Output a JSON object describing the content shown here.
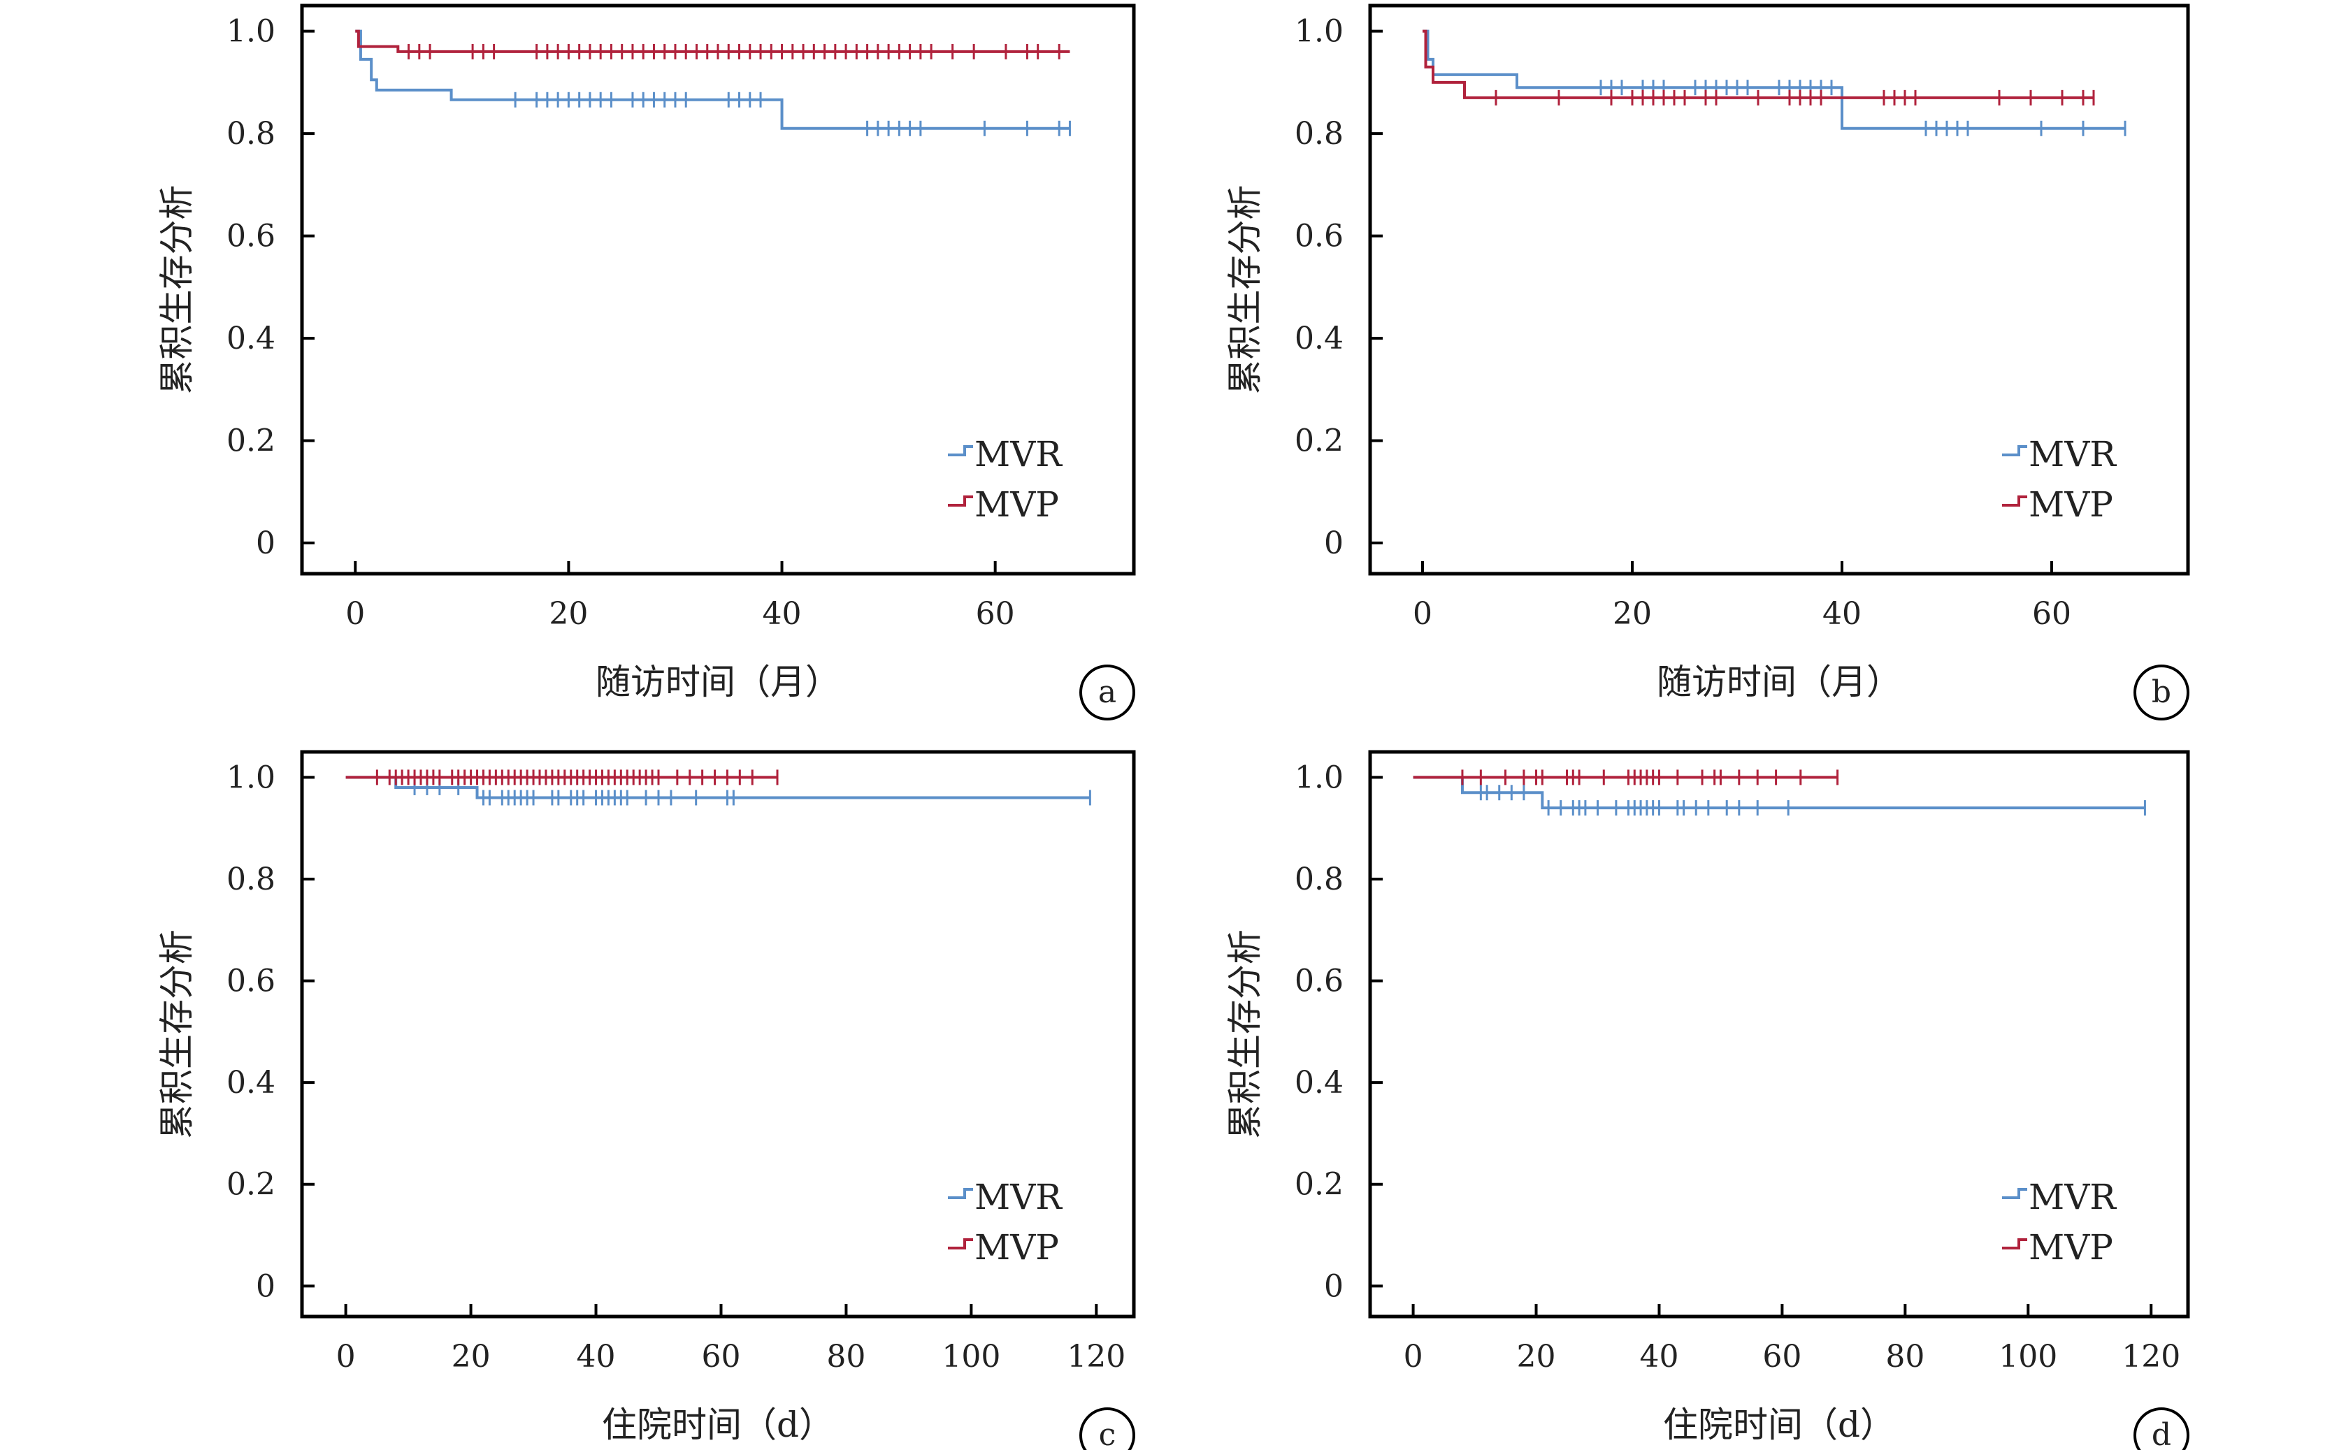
{
  "colors": {
    "MVR": "#5b8fc9",
    "MVP": "#b0223c"
  },
  "chart_data": [
    {
      "type": "line",
      "subtype": "kaplan-meier",
      "panel_label": "a",
      "xlabel": "随访时间（月）",
      "ylabel": "累积生存分析",
      "xlim": [
        -5,
        73
      ],
      "ylim": [
        -0.06,
        1.05
      ],
      "xticks": [
        0,
        20,
        40,
        60
      ],
      "yticks": [
        0,
        0.2,
        0.4,
        0.6,
        0.8,
        1.0
      ],
      "ytick_labels": [
        "0",
        "0.2",
        "0.4",
        "0.6",
        "0.8",
        "1.0"
      ],
      "legend": "bottom-right",
      "series": [
        {
          "name": "MVR",
          "steps": [
            [
              0,
              1.0
            ],
            [
              0.5,
              0.945
            ],
            [
              1.5,
              0.905
            ],
            [
              2,
              0.885
            ],
            [
              9,
              0.866
            ],
            [
              40,
              0.81
            ],
            [
              67,
              0.81
            ]
          ],
          "censored": [
            15,
            17,
            18,
            19,
            20,
            21,
            22,
            23,
            24,
            26,
            27,
            28,
            29,
            30,
            31,
            35,
            36,
            37,
            38,
            48,
            49,
            50,
            51,
            52,
            53,
            59,
            63,
            66,
            67
          ]
        },
        {
          "name": "MVP",
          "steps": [
            [
              0,
              1.0
            ],
            [
              0.3,
              0.97
            ],
            [
              4,
              0.96
            ],
            [
              67,
              0.96
            ]
          ],
          "censored": [
            5,
            6,
            7,
            11,
            12,
            13,
            17,
            18,
            19,
            20,
            21,
            22,
            23,
            24,
            25,
            26,
            27,
            28,
            29,
            30,
            31,
            32,
            33,
            34,
            35,
            36,
            37,
            38,
            39,
            40,
            41,
            42,
            43,
            44,
            45,
            46,
            47,
            48,
            49,
            50,
            51,
            52,
            53,
            54,
            56,
            58,
            61,
            63,
            64,
            66
          ]
        }
      ]
    },
    {
      "type": "line",
      "subtype": "kaplan-meier",
      "panel_label": "b",
      "xlabel": "随访时间（月）",
      "ylabel": "累积生存分析",
      "xlim": [
        -5,
        73
      ],
      "ylim": [
        -0.06,
        1.05
      ],
      "xticks": [
        0,
        20,
        40,
        60
      ],
      "yticks": [
        0,
        0.2,
        0.4,
        0.6,
        0.8,
        1.0
      ],
      "ytick_labels": [
        "0",
        "0.2",
        "0.4",
        "0.6",
        "0.8",
        "1.0"
      ],
      "legend": "bottom-right",
      "series": [
        {
          "name": "MVR",
          "steps": [
            [
              0,
              1.0
            ],
            [
              0.5,
              0.945
            ],
            [
              1,
              0.915
            ],
            [
              9,
              0.89
            ],
            [
              40,
              0.81
            ],
            [
              67,
              0.81
            ]
          ],
          "censored": [
            17,
            18,
            19,
            21,
            22,
            23,
            26,
            27,
            28,
            29,
            30,
            31,
            34,
            35,
            36,
            37,
            38,
            39,
            48,
            49,
            50,
            51,
            52,
            59,
            63,
            67
          ]
        },
        {
          "name": "MVP",
          "steps": [
            [
              0,
              1.0
            ],
            [
              0.3,
              0.93
            ],
            [
              1,
              0.9
            ],
            [
              4,
              0.87
            ],
            [
              64,
              0.87
            ]
          ],
          "censored": [
            7,
            13,
            18,
            20,
            21,
            22,
            23,
            24,
            25,
            27,
            28,
            32,
            35,
            36,
            37,
            38,
            44,
            45,
            46,
            47,
            55,
            58,
            61,
            63,
            64
          ]
        }
      ]
    },
    {
      "type": "line",
      "subtype": "kaplan-meier",
      "panel_label": "c",
      "xlabel": "住院时间（d）",
      "ylabel": "累积生存分析",
      "xlim": [
        -7,
        126
      ],
      "ylim": [
        -0.06,
        1.05
      ],
      "xticks": [
        0,
        20,
        40,
        60,
        80,
        100,
        120
      ],
      "yticks": [
        0,
        0.2,
        0.4,
        0.6,
        0.8,
        1.0
      ],
      "ytick_labels": [
        "0",
        "0.2",
        "0.4",
        "0.6",
        "0.8",
        "1.0"
      ],
      "legend": "bottom-right",
      "series": [
        {
          "name": "MVR",
          "steps": [
            [
              0,
              1.0
            ],
            [
              8,
              0.98
            ],
            [
              20,
              0.98
            ],
            [
              21,
              0.96
            ],
            [
              119,
              0.96
            ]
          ],
          "censored": [
            11,
            13,
            15,
            18,
            22,
            23,
            25,
            26,
            27,
            28,
            29,
            30,
            33,
            34,
            36,
            37,
            38,
            40,
            41,
            42,
            43,
            44,
            45,
            48,
            50,
            52,
            56,
            61,
            62,
            119
          ]
        },
        {
          "name": "MVP",
          "steps": [
            [
              0,
              1.0
            ],
            [
              69,
              1.0
            ]
          ],
          "censored": [
            5,
            7,
            8,
            9,
            10,
            11,
            12,
            13,
            14,
            15,
            17,
            18,
            19,
            20,
            21,
            22,
            23,
            24,
            25,
            26,
            27,
            28,
            29,
            30,
            31,
            32,
            33,
            34,
            35,
            36,
            37,
            38,
            39,
            40,
            41,
            42,
            43,
            44,
            45,
            46,
            47,
            48,
            49,
            50,
            53,
            55,
            57,
            59,
            61,
            63,
            65,
            69
          ]
        }
      ]
    },
    {
      "type": "line",
      "subtype": "kaplan-meier",
      "panel_label": "d",
      "xlabel": "住院时间（d）",
      "ylabel": "累积生存分析",
      "xlim": [
        -7,
        126
      ],
      "ylim": [
        -0.06,
        1.05
      ],
      "xticks": [
        0,
        20,
        40,
        60,
        80,
        100,
        120
      ],
      "yticks": [
        0,
        0.2,
        0.4,
        0.6,
        0.8,
        1.0
      ],
      "ytick_labels": [
        "0",
        "0.2",
        "0.4",
        "0.6",
        "0.8",
        "1.0"
      ],
      "legend": "bottom-right",
      "series": [
        {
          "name": "MVR",
          "steps": [
            [
              0,
              1.0
            ],
            [
              8,
              0.97
            ],
            [
              20,
              0.97
            ],
            [
              21,
              0.94
            ],
            [
              119,
              0.94
            ]
          ],
          "censored": [
            11,
            12,
            14,
            16,
            18,
            22,
            24,
            26,
            27,
            28,
            30,
            33,
            35,
            36,
            37,
            38,
            39,
            40,
            43,
            44,
            46,
            48,
            51,
            53,
            56,
            61,
            119
          ]
        },
        {
          "name": "MVP",
          "steps": [
            [
              0,
              1.0
            ],
            [
              69,
              1.0
            ]
          ],
          "censored": [
            8,
            11,
            15,
            18,
            20,
            21,
            25,
            26,
            27,
            31,
            35,
            36,
            37,
            38,
            39,
            40,
            43,
            47,
            49,
            50,
            53,
            56,
            59,
            63,
            69
          ]
        }
      ]
    }
  ]
}
